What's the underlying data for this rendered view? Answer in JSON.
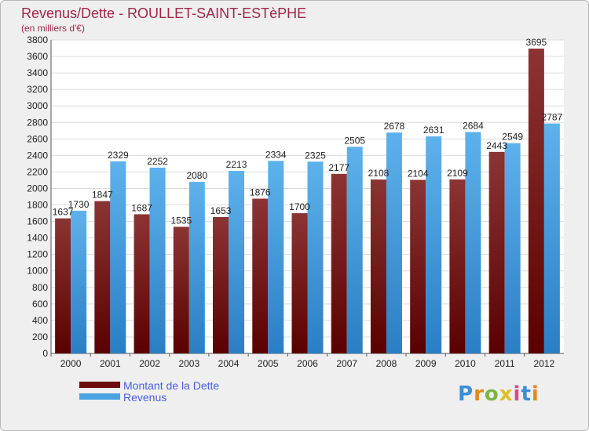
{
  "title": "Revenus/Dette - ROULLET-SAINT-ESTèPHE",
  "subtitle": "(en milliers d'€)",
  "chart_data": {
    "type": "bar",
    "categories": [
      "2000",
      "2001",
      "2002",
      "2003",
      "2004",
      "2005",
      "2006",
      "2007",
      "2008",
      "2009",
      "2010",
      "2011",
      "2012"
    ],
    "series": [
      {
        "name": "Montant de la Dette",
        "color": "#7a1a1a",
        "values": [
          1637,
          1847,
          1687,
          1535,
          1653,
          1876,
          1700,
          2177,
          2108,
          2104,
          2109,
          2443,
          3695
        ]
      },
      {
        "name": "Revenus",
        "color": "#4aa3e0",
        "values": [
          1730,
          2329,
          2252,
          2080,
          2213,
          2334,
          2325,
          2505,
          2678,
          2631,
          2684,
          2549,
          2787
        ]
      }
    ],
    "ylim": [
      0,
      3800
    ],
    "yticks": [
      0,
      200,
      400,
      600,
      800,
      1000,
      1200,
      1400,
      1600,
      1800,
      2000,
      2200,
      2400,
      2600,
      2800,
      3000,
      3200,
      3400,
      3600,
      3800
    ],
    "grid": true,
    "legend_position": "bottom-left"
  },
  "legend": [
    {
      "label": "Montant de la Dette",
      "color": "#6b0c0c"
    },
    {
      "label": "Revenus",
      "color": "#4aa3e0"
    }
  ],
  "logo": {
    "text": "Proxiti"
  }
}
